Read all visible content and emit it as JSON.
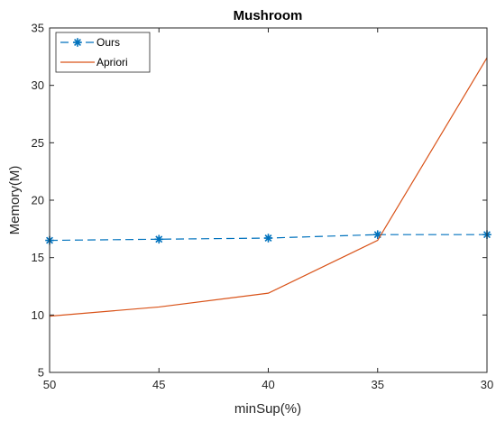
{
  "chart_data": {
    "type": "line",
    "title": "Mushroom",
    "xlabel": "minSup(%)",
    "ylabel": "Memory(M)",
    "x": [
      50,
      45,
      40,
      35,
      30
    ],
    "x_tick_labels": [
      "50",
      "45",
      "40",
      "35",
      "30"
    ],
    "x_reversed": true,
    "xlim": [
      50,
      30
    ],
    "ylim": [
      5,
      35
    ],
    "y_ticks": [
      5,
      10,
      15,
      20,
      25,
      30,
      35
    ],
    "y_tick_labels": [
      "5",
      "10",
      "15",
      "20",
      "25",
      "30",
      "35"
    ],
    "grid": false,
    "legend_position": "top-left",
    "series": [
      {
        "name": "Ours",
        "values": [
          16.5,
          16.6,
          16.7,
          17.0,
          17.0
        ],
        "color": "#0072BD",
        "line_style": "dashed",
        "marker": "asterisk"
      },
      {
        "name": "Apriori",
        "values": [
          9.9,
          10.7,
          11.9,
          16.5,
          32.4
        ],
        "color": "#D95319",
        "line_style": "solid",
        "marker": "none"
      }
    ]
  }
}
